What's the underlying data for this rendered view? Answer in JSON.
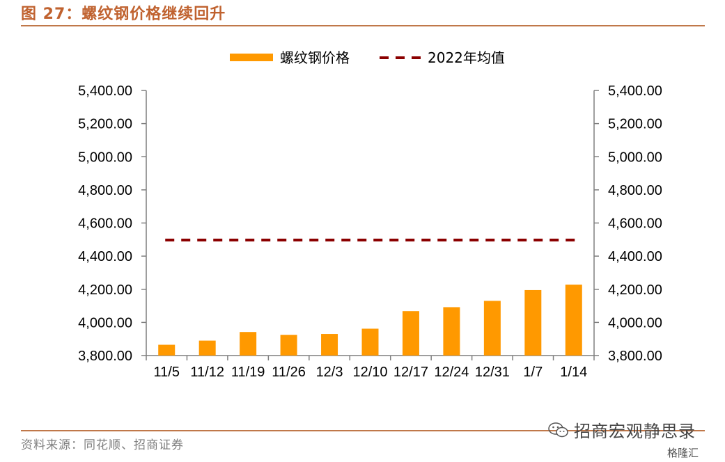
{
  "figure": {
    "title": "图 27：螺纹钢价格继续回升",
    "source": "资料来源：同花顺、招商证券",
    "watermark": "招商宏观静思录",
    "watermark_small": "格隆汇"
  },
  "colors": {
    "bar": "#ff9900",
    "avg_line": "#8b0000",
    "title": "#c0622f",
    "rule": "#c0784a"
  },
  "chart_data": {
    "type": "bar",
    "categories": [
      "11/5",
      "11/12",
      "11/19",
      "11/26",
      "12/3",
      "12/10",
      "12/17",
      "12/24",
      "12/31",
      "1/7",
      "1/14"
    ],
    "series": [
      {
        "name": "螺纹钢价格",
        "type": "bar",
        "values": [
          3865,
          3890,
          3942,
          3925,
          3930,
          3962,
          4068,
          4092,
          4130,
          4195,
          4228
        ]
      },
      {
        "name": "2022年均值",
        "type": "line",
        "style": "dashed",
        "values": [
          4497,
          4497,
          4497,
          4497,
          4497,
          4497,
          4497,
          4497,
          4497,
          4497,
          4497
        ]
      }
    ],
    "ylim": [
      3800,
      5400
    ],
    "yticks": [
      "3,800.00",
      "4,000.00",
      "4,200.00",
      "4,400.00",
      "4,600.00",
      "4,800.00",
      "5,000.00",
      "5,200.00",
      "5,400.00"
    ],
    "secondary_axis": true,
    "legend_position": "top-center",
    "grid": false
  }
}
